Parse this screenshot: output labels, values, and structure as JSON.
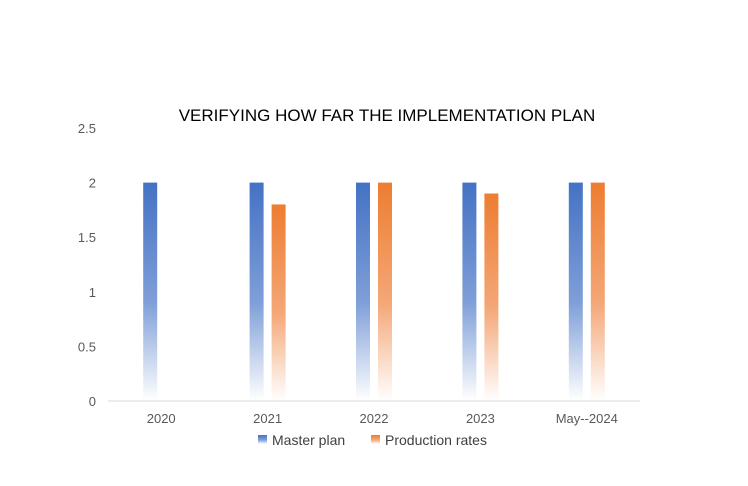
{
  "chart_data": {
    "type": "bar",
    "title": "VERIFYING HOW FAR THE IMPLEMENTATION PLAN",
    "categories": [
      "2020",
      "2021",
      "2022",
      "2023",
      "May--2024"
    ],
    "series": [
      {
        "name": "Master plan",
        "values": [
          2,
          2,
          2,
          2,
          2
        ],
        "color": "#4472C4"
      },
      {
        "name": "Production rates",
        "values": [
          null,
          1.8,
          2,
          1.9,
          2
        ],
        "color": "#ED7D31"
      }
    ],
    "yticks": [
      "0",
      "0.5",
      "1",
      "1.5",
      "2",
      "2.5"
    ],
    "ylim": [
      0,
      2.5
    ],
    "grid": false,
    "legend_position": "bottom",
    "bar_style": "gradient-fade-to-white"
  }
}
